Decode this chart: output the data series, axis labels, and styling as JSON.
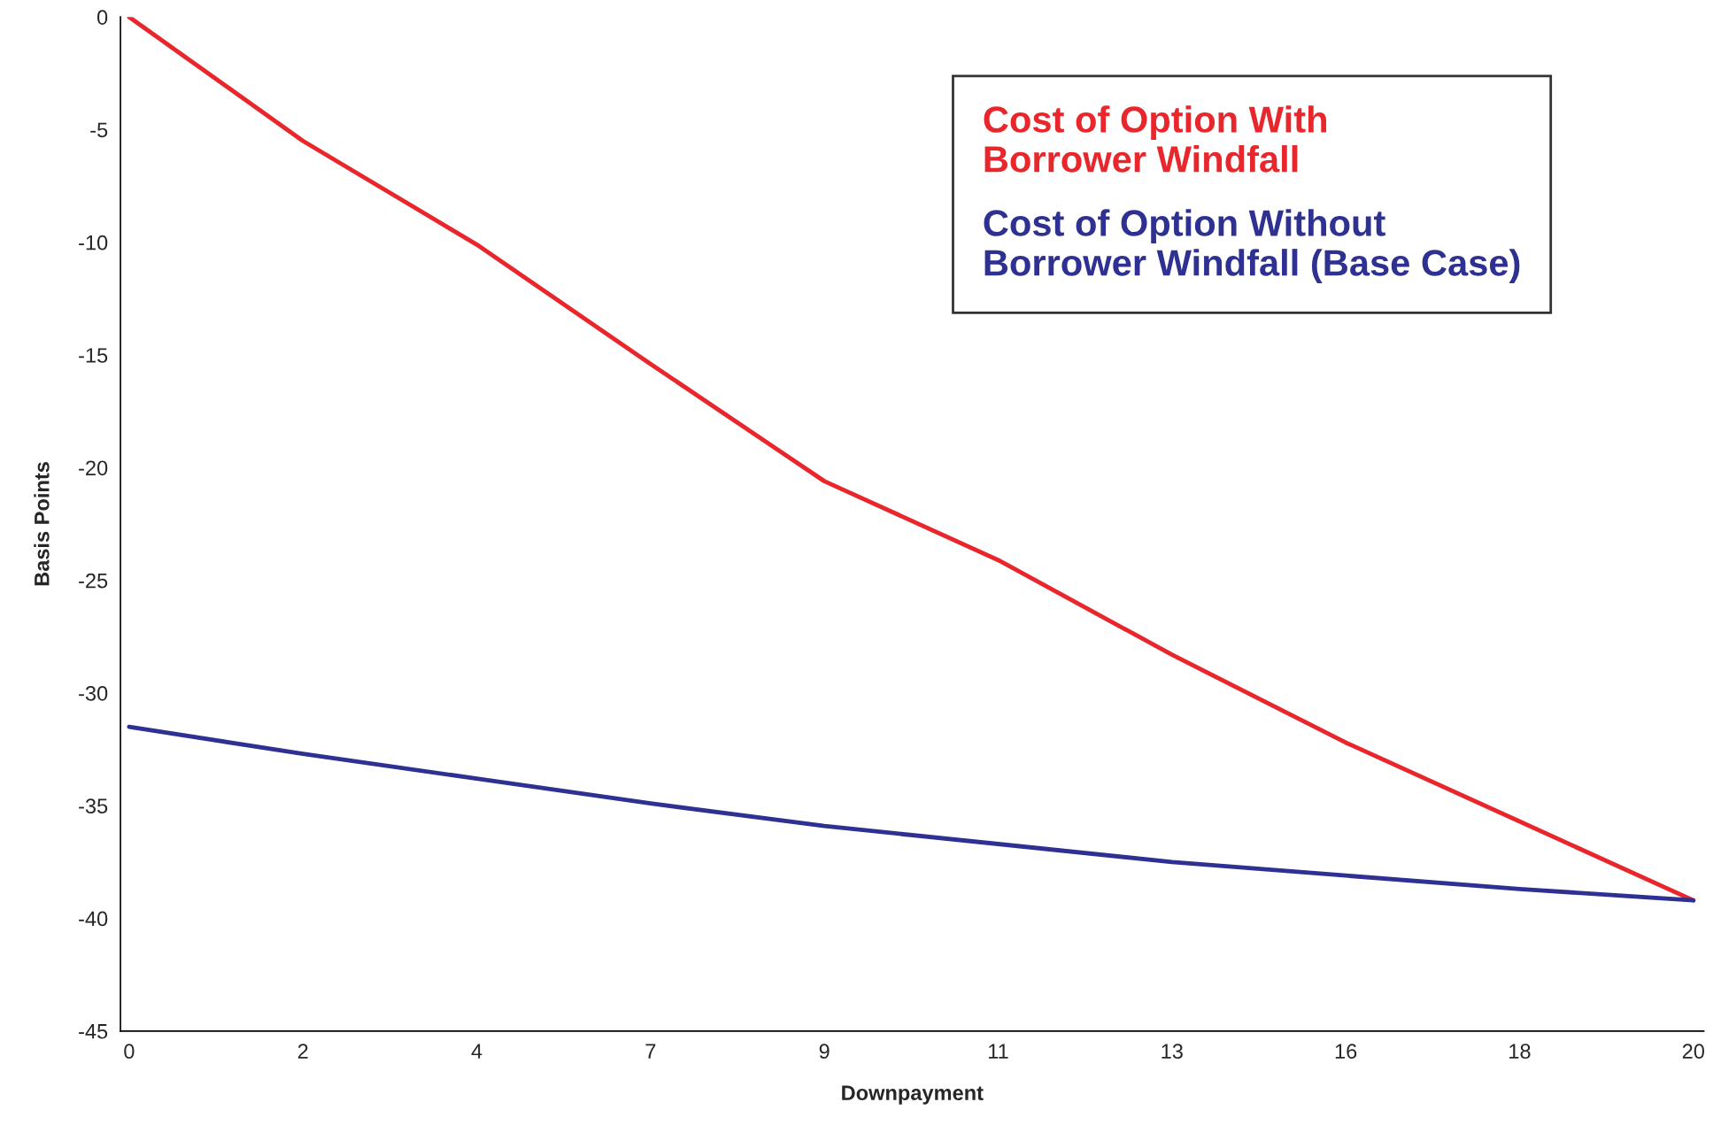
{
  "chart_data": {
    "type": "line",
    "xlabel": "Downpayment",
    "ylabel": "Basis Points",
    "categories": [
      "0",
      "2",
      "4",
      "7",
      "9",
      "11",
      "13",
      "16",
      "18",
      "20"
    ],
    "series": [
      {
        "name": "Cost of Option With Borrower Windfall",
        "color": "#e8262b",
        "values": [
          0,
          -5.5,
          -10.1,
          -15.4,
          -20.6,
          -24.1,
          -28.3,
          -32.2,
          -35.7,
          -39.2
        ]
      },
      {
        "name": "Cost of Option Without Borrower Windfall (Base Case)",
        "color": "#2e3192",
        "values": [
          -31.5,
          -32.7,
          -33.8,
          -34.9,
          -35.9,
          -36.7,
          -37.5,
          -38.1,
          -38.7,
          -39.2
        ]
      }
    ],
    "ylim": [
      -45,
      0
    ],
    "yticks": [
      -45,
      -40,
      -35,
      -30,
      -25,
      -20,
      -15,
      -10,
      -5,
      0
    ],
    "grid": false,
    "legend": "top right",
    "marker": "none",
    "line_style": "solid"
  }
}
